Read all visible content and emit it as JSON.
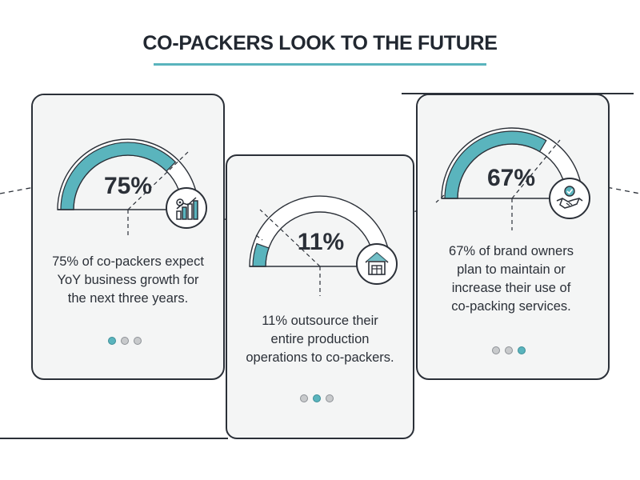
{
  "title": "CO-PACKERS LOOK TO THE FUTURE",
  "colors": {
    "accent": "#5ab4bd",
    "ink": "#2b3038",
    "card": "#f4f5f5"
  },
  "cards": [
    {
      "percent_label": "75%",
      "percent": 75,
      "description_lines": [
        "75% of co-packers expect",
        "YoY business growth for",
        "the next three years."
      ],
      "icon": "growth-chart-gear-icon",
      "active_dot": 0
    },
    {
      "percent_label": "11%",
      "percent": 11,
      "description_lines": [
        "11% outsource their",
        "entire production",
        "operations to co-packers."
      ],
      "icon": "warehouse-icon",
      "active_dot": 1
    },
    {
      "percent_label": "67%",
      "percent": 67,
      "description_lines": [
        "67% of brand owners",
        "plan to maintain or",
        "increase their use of",
        "co-packing services."
      ],
      "icon": "handshake-check-icon",
      "active_dot": 2
    }
  ]
}
